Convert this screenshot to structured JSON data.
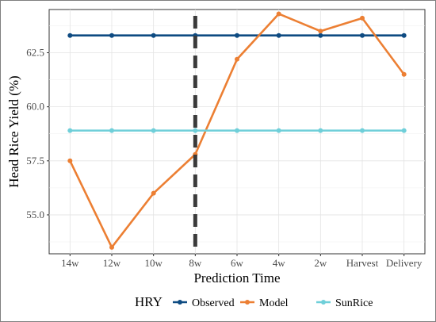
{
  "chart_data": {
    "type": "line",
    "xlabel": "Prediction Time",
    "ylabel": "Head Rice Yield (%)",
    "categories": [
      "14w",
      "12w",
      "10w",
      "8w",
      "6w",
      "4w",
      "2w",
      "Harvest",
      "Delivery"
    ],
    "ylim": [
      53.2,
      64.5
    ],
    "yticks": [
      55.0,
      57.5,
      60.0,
      62.5
    ],
    "ytick_labels": [
      "55.0",
      "57.5",
      "60.0",
      "62.5"
    ],
    "grid": true,
    "legend": {
      "title": "HRY",
      "position": "bottom",
      "items": [
        {
          "name": "Observed",
          "color": "#0e4b82"
        },
        {
          "name": "Model",
          "color": "#ec7f33"
        },
        {
          "name": "SunRice",
          "color": "#6fcfd9"
        }
      ]
    },
    "vline": {
      "category": "8w",
      "style": "dashed",
      "color": "#3a3a3a"
    },
    "series": [
      {
        "name": "Observed",
        "color": "#0e4b82",
        "values": [
          63.3,
          63.3,
          63.3,
          63.3,
          63.3,
          63.3,
          63.3,
          63.3,
          63.3
        ]
      },
      {
        "name": "Model",
        "color": "#ec7f33",
        "values": [
          57.5,
          53.5,
          56.0,
          57.8,
          62.2,
          64.3,
          63.5,
          64.1,
          61.5
        ]
      },
      {
        "name": "SunRice",
        "color": "#6fcfd9",
        "values": [
          58.9,
          58.9,
          58.9,
          58.9,
          58.9,
          58.9,
          58.9,
          58.9,
          58.9
        ]
      }
    ]
  }
}
